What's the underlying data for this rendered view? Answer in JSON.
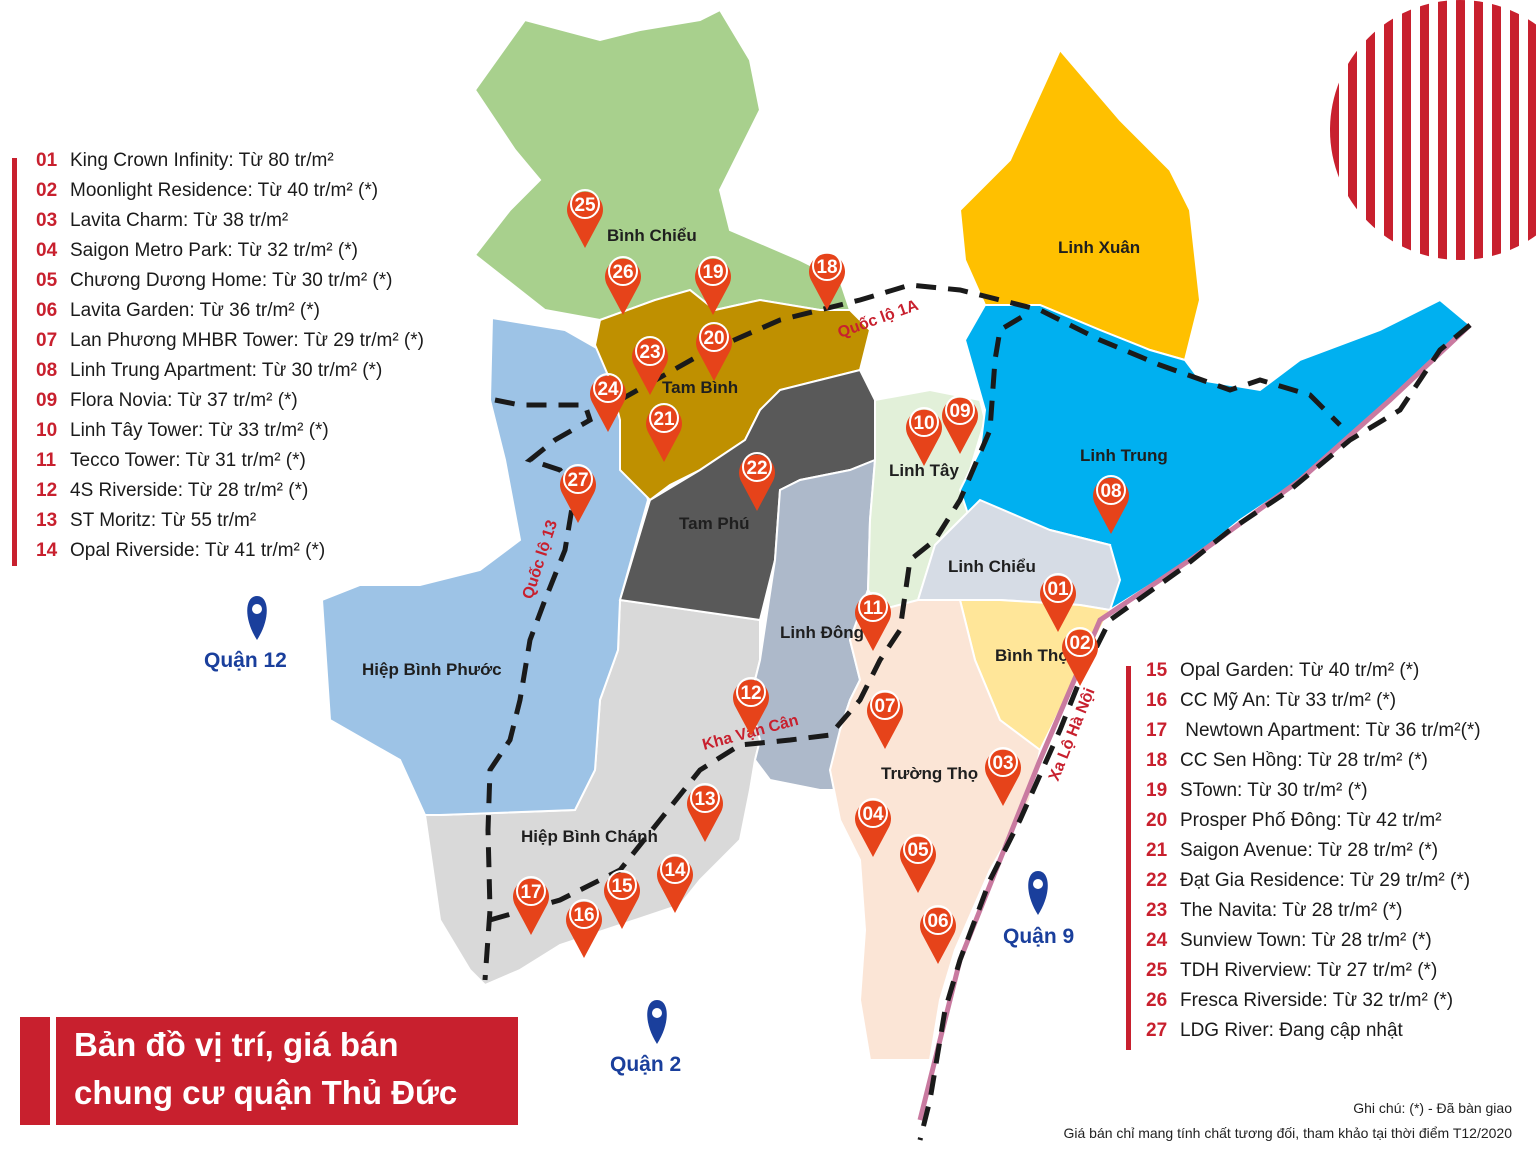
{
  "colors": {
    "accent": "#c8202e",
    "pin": "#e6431a",
    "quan": "#1a3f9c",
    "binh_chieu": "#a8d08d",
    "tam_binh": "#bf9000",
    "linh_xuan": "#ffc000",
    "linh_trung": "#00b0f0",
    "hiep_binh_phuoc": "#9dc3e6",
    "tam_phu": "#595959",
    "linh_dong": "#adb9ca",
    "linh_tay": "#e2f0d9",
    "linh_chieu": "#d6dce5",
    "binh_tho": "#ffe699",
    "truong_tho": "#fbe5d6",
    "hiep_binh_chanh": "#d9d9d9"
  },
  "icons": {
    "pin": "map-marker-icon",
    "quan": "location-pin-icon"
  },
  "legend_left": [
    {
      "num": "01",
      "text": "King Crown Infinity: Từ 80 tr/m² "
    },
    {
      "num": "02",
      "text": "Moonlight Residence: Từ 40 tr/m² (*)"
    },
    {
      "num": "03",
      "text": "Lavita Charm: Từ 38 tr/m²"
    },
    {
      "num": "04",
      "text": "Saigon Metro Park: Từ 32 tr/m² (*)"
    },
    {
      "num": "05",
      "text": "Chương Dương Home: Từ 30 tr/m² (*)"
    },
    {
      "num": "06",
      "text": "Lavita Garden: Từ 36 tr/m² (*)"
    },
    {
      "num": "07",
      "text": "Lan Phương MHBR Tower: Từ 29 tr/m² (*)"
    },
    {
      "num": "08",
      "text": "Linh Trung Apartment: Từ 30 tr/m² (*)"
    },
    {
      "num": "09",
      "text": "Flora Novia: Từ 37 tr/m² (*)"
    },
    {
      "num": "10",
      "text": "Linh Tây Tower: Từ 33 tr/m² (*)"
    },
    {
      "num": "11",
      "text": "Tecco Tower: Từ 31 tr/m² (*)"
    },
    {
      "num": "12",
      "text": "4S Riverside: Từ 28 tr/m² (*)"
    },
    {
      "num": "13",
      "text": "ST Moritz: Từ 55 tr/m²"
    },
    {
      "num": "14",
      "text": "Opal Riverside: Từ 41 tr/m² (*)"
    }
  ],
  "legend_right": [
    {
      "num": "15",
      "text": "Opal Garden: Từ 40 tr/m² (*)"
    },
    {
      "num": "16",
      "text": "CC Mỹ An: Từ 33 tr/m² (*)"
    },
    {
      "num": "17",
      "text": " Newtown Apartment: Từ 36 tr/m²(*)"
    },
    {
      "num": "18",
      "text": "CC Sen Hồng: Từ 28 tr/m² (*)"
    },
    {
      "num": "19",
      "text": "STown: Từ 30 tr/m² (*)"
    },
    {
      "num": "20",
      "text": "Prosper Phố Đông: Từ 42 tr/m²"
    },
    {
      "num": "21",
      "text": "Saigon Avenue: Từ 28 tr/m² (*)"
    },
    {
      "num": "22",
      "text": "Đạt Gia Residence: Từ 29 tr/m² (*)"
    },
    {
      "num": "23",
      "text": "The Navita: Từ 28 tr/m² (*)"
    },
    {
      "num": "24",
      "text": "Sunview Town: Từ 28 tr/m² (*)"
    },
    {
      "num": "25",
      "text": "TDH Riverview: Từ 27 tr/m² (*)"
    },
    {
      "num": "26",
      "text": "Fresca Riverside: Từ 32 tr/m² (*)"
    },
    {
      "num": "27",
      "text": "LDG River: Đang cập nhật"
    }
  ],
  "districts": {
    "binh_chieu": "Bình Chiểu",
    "tam_binh": "Tam Bình",
    "linh_xuan": "Linh Xuân",
    "linh_trung": "Linh Trung",
    "linh_tay": "Linh Tây",
    "tam_phu": "Tam Phú",
    "linh_chieu": "Linh Chiểu",
    "linh_dong": "Linh Đông",
    "binh_tho": "Bình Thọ",
    "hiep_binh_phuoc": "Hiệp Bình Phước",
    "truong_tho": "Trường Thọ",
    "hiep_binh_chanh": "Hiệp Bình Chánh"
  },
  "roads": {
    "quoc_lo_1a": "Quốc lộ 1A",
    "quoc_lo_13": "Quốc lộ 13",
    "kha_van_can": "Kha Vạn Cân",
    "xa_lo_ha_noi": "Xa Lộ Hà Nội"
  },
  "quan": {
    "q12": "Quận 12",
    "q2": "Quận 2",
    "q9": "Quận 9"
  },
  "pins": [
    "01",
    "02",
    "03",
    "04",
    "05",
    "06",
    "07",
    "08",
    "09",
    "10",
    "11",
    "12",
    "13",
    "14",
    "15",
    "16",
    "17",
    "18",
    "19",
    "20",
    "21",
    "22",
    "23",
    "24",
    "25",
    "26",
    "27"
  ],
  "title": {
    "line1": "Bản đồ vị trí, giá bán",
    "line2": "chung cư quận Thủ Đức"
  },
  "footnote": {
    "line1": "Ghi chú: (*) - Đã bàn giao",
    "line2": "Giá bán chỉ mang tính chất tương đối, tham khảo tại thời điểm T12/2020"
  }
}
